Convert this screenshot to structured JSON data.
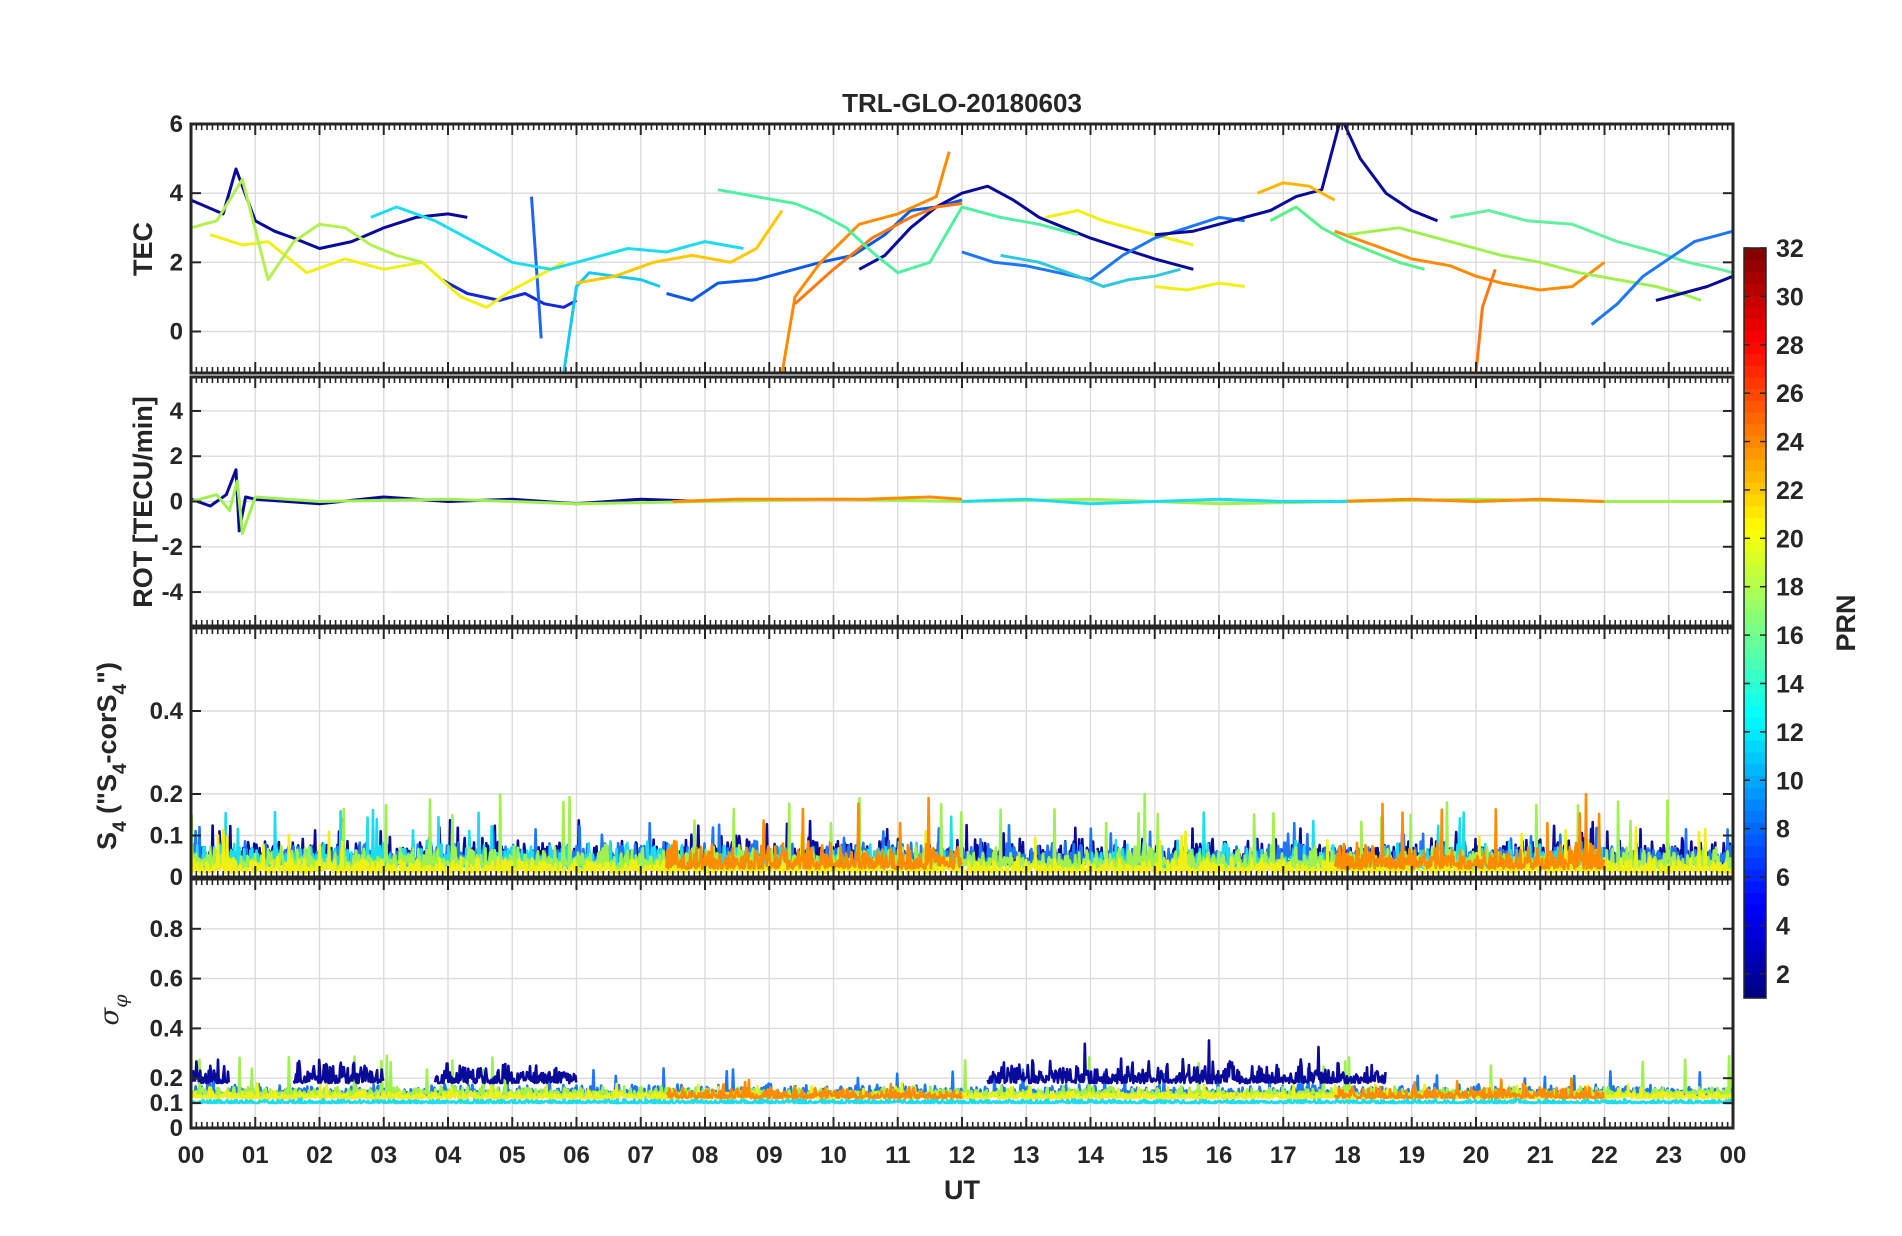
{
  "chart_data": [
    {
      "type": "line",
      "title": "TRL-GLO-20180603",
      "ylabel": "TEC",
      "ylim": [
        -1.2,
        6
      ],
      "yticks": [
        0,
        2,
        4,
        6
      ],
      "xlim": [
        0,
        24
      ],
      "grid": true,
      "series": [
        {
          "color": "#0A0A9A",
          "x": [
            0.0,
            0.5,
            0.7,
            1.0,
            1.3,
            1.6,
            2.0,
            2.5,
            3.0,
            3.5,
            4.0,
            4.3
          ],
          "y": [
            3.8,
            3.4,
            4.7,
            3.2,
            2.9,
            2.7,
            2.4,
            2.6,
            3.0,
            3.3,
            3.4,
            3.3
          ]
        },
        {
          "color": "#1428D6",
          "x": [
            3.9,
            4.3,
            4.8,
            5.2,
            5.5,
            5.8,
            6.0
          ],
          "y": [
            1.5,
            1.1,
            0.9,
            1.1,
            0.8,
            0.7,
            0.9
          ]
        },
        {
          "color": "#1E64F0",
          "x": [
            5.3,
            5.4,
            5.45
          ],
          "y": [
            3.9,
            1.2,
            -0.2
          ]
        },
        {
          "color": "#14C8F0",
          "x": [
            5.8,
            6.0,
            6.2,
            6.6,
            7.0,
            7.3
          ],
          "y": [
            -1.2,
            1.3,
            1.7,
            1.6,
            1.5,
            1.3
          ]
        },
        {
          "color": "#0A5AE6",
          "x": [
            7.4,
            7.8,
            8.2,
            8.8,
            9.2,
            9.8,
            10.3,
            10.8,
            11.2,
            11.6,
            12.0
          ],
          "y": [
            1.1,
            0.9,
            1.4,
            1.5,
            1.7,
            2.0,
            2.2,
            2.8,
            3.5,
            3.6,
            3.8
          ]
        },
        {
          "color": "#0A0A9A",
          "x": [
            10.4,
            10.8,
            11.2,
            11.6,
            12.0,
            12.4,
            12.8,
            13.2,
            13.6,
            14.0,
            14.5,
            15.0,
            15.6
          ],
          "y": [
            1.8,
            2.2,
            3.0,
            3.6,
            4.0,
            4.2,
            3.8,
            3.3,
            3.0,
            2.7,
            2.4,
            2.1,
            1.8
          ]
        },
        {
          "color": "#FF8C00",
          "x": [
            9.2,
            9.4,
            9.8,
            10.4,
            11.0,
            11.6,
            11.8
          ],
          "y": [
            -1.2,
            1.0,
            2.0,
            3.1,
            3.4,
            3.9,
            5.2
          ]
        },
        {
          "color": "#FF7814",
          "x": [
            9.4,
            10.0,
            10.6,
            11.2,
            11.6,
            12.0
          ],
          "y": [
            0.8,
            1.8,
            2.7,
            3.3,
            3.6,
            3.7
          ]
        },
        {
          "color": "#50F0A0",
          "x": [
            8.2,
            8.8,
            9.4,
            9.8,
            10.2,
            10.6,
            11.0,
            11.5,
            12.0,
            12.6,
            13.2,
            13.8
          ],
          "y": [
            4.1,
            3.9,
            3.7,
            3.4,
            3.0,
            2.3,
            1.7,
            2.0,
            3.6,
            3.3,
            3.1,
            2.8
          ]
        },
        {
          "color": "#F0F014",
          "x": [
            13.3,
            13.8,
            14.2,
            14.6,
            15.0,
            15.6
          ],
          "y": [
            3.3,
            3.5,
            3.2,
            3.0,
            2.8,
            2.5
          ]
        },
        {
          "color": "#F0F014",
          "x": [
            15.0,
            15.5,
            16.0,
            16.4
          ],
          "y": [
            1.3,
            1.2,
            1.4,
            1.3
          ]
        },
        {
          "color": "#1E78F5",
          "x": [
            12.0,
            12.5,
            13.0,
            13.5,
            14.0,
            14.5,
            15.0,
            15.5,
            16.0,
            16.4
          ],
          "y": [
            2.3,
            2.0,
            1.9,
            1.7,
            1.5,
            2.2,
            2.7,
            3.0,
            3.3,
            3.2
          ]
        },
        {
          "color": "#0A0A9A",
          "x": [
            15.0,
            15.6,
            16.2,
            16.8,
            17.2,
            17.6,
            17.9,
            18.2,
            18.6,
            19.0,
            19.4
          ],
          "y": [
            2.8,
            2.9,
            3.2,
            3.5,
            3.9,
            4.1,
            6.2,
            5.0,
            4.0,
            3.5,
            3.2
          ]
        },
        {
          "color": "#FFB400",
          "x": [
            16.6,
            17.0,
            17.4,
            17.8
          ],
          "y": [
            4.0,
            4.3,
            4.2,
            3.8
          ]
        },
        {
          "color": "#FF8C00",
          "x": [
            17.8,
            18.4,
            19.0,
            19.6,
            20.0,
            20.4,
            21.0,
            21.5,
            22.0
          ],
          "y": [
            2.9,
            2.5,
            2.1,
            1.9,
            1.6,
            1.4,
            1.2,
            1.3,
            2.0
          ]
        },
        {
          "color": "#FF7814",
          "x": [
            20.0,
            20.1,
            20.3
          ],
          "y": [
            -1.2,
            0.7,
            1.8
          ]
        },
        {
          "color": "#A0F050",
          "x": [
            18.0,
            18.8,
            19.6,
            20.4,
            21.0,
            21.6,
            22.2,
            22.8,
            23.2,
            23.5
          ],
          "y": [
            2.8,
            3.0,
            2.6,
            2.2,
            2.0,
            1.7,
            1.5,
            1.3,
            1.1,
            0.9
          ]
        },
        {
          "color": "#64F0A0",
          "x": [
            19.6,
            20.2,
            20.8,
            21.5,
            22.2,
            22.8,
            23.3,
            23.8,
            24.0
          ],
          "y": [
            3.3,
            3.5,
            3.2,
            3.1,
            2.6,
            2.3,
            2.0,
            1.8,
            1.7
          ]
        },
        {
          "color": "#1E78F5",
          "x": [
            21.8,
            22.2,
            22.6,
            23.0,
            23.4,
            23.8,
            24.0
          ],
          "y": [
            0.2,
            0.8,
            1.6,
            2.1,
            2.6,
            2.8,
            2.9
          ]
        },
        {
          "color": "#0A0A9A",
          "x": [
            22.8,
            23.2,
            23.6,
            24.0
          ],
          "y": [
            0.9,
            1.1,
            1.3,
            1.6
          ]
        },
        {
          "color": "#F0F014",
          "x": [
            0.3,
            0.8,
            1.2,
            1.8,
            2.4,
            3.0,
            3.6,
            4.2,
            4.6,
            5.0,
            5.4,
            5.8
          ],
          "y": [
            2.8,
            2.5,
            2.6,
            1.7,
            2.1,
            1.8,
            2.0,
            1.0,
            0.7,
            1.2,
            1.6,
            2.0
          ]
        },
        {
          "color": "#B4F050",
          "x": [
            0.0,
            0.4,
            0.8,
            1.2,
            1.6,
            2.0,
            2.4,
            2.8,
            3.2,
            3.6
          ],
          "y": [
            3.0,
            3.2,
            4.4,
            1.5,
            2.6,
            3.1,
            3.0,
            2.5,
            2.2,
            2.0
          ]
        },
        {
          "color": "#1EDCF0",
          "x": [
            2.8,
            3.2,
            3.8,
            4.4,
            5.0,
            5.6,
            6.2,
            6.8,
            7.4,
            8.0,
            8.6
          ],
          "y": [
            3.3,
            3.6,
            3.2,
            2.6,
            2.0,
            1.8,
            2.1,
            2.4,
            2.3,
            2.6,
            2.4
          ]
        },
        {
          "color": "#32C8DC",
          "x": [
            12.6,
            13.2,
            13.8,
            14.2,
            14.6,
            15.0,
            15.4
          ],
          "y": [
            2.2,
            2.0,
            1.6,
            1.3,
            1.5,
            1.6,
            1.8
          ]
        },
        {
          "color": "#FFC800",
          "x": [
            6.0,
            6.6,
            7.2,
            7.8,
            8.4,
            8.8,
            9.2
          ],
          "y": [
            1.4,
            1.6,
            2.0,
            2.2,
            2.0,
            2.4,
            3.5
          ]
        },
        {
          "color": "#5AF08C",
          "x": [
            16.8,
            17.2,
            17.6,
            18.0,
            18.4,
            18.8,
            19.2
          ],
          "y": [
            3.2,
            3.6,
            3.0,
            2.6,
            2.3,
            2.0,
            1.8
          ]
        }
      ]
    },
    {
      "type": "line",
      "ylabel": "ROT [TECU/min]",
      "ylim": [
        -5.5,
        5.5
      ],
      "yticks": [
        -4,
        -2,
        0,
        2,
        4
      ],
      "xlim": [
        0,
        24
      ],
      "grid": true,
      "series": [
        {
          "color": "#0A0A9A",
          "x": [
            0.0,
            0.3,
            0.55,
            0.7,
            0.75,
            0.85,
            1.0,
            2.0,
            3.0,
            4.0,
            5.0,
            6.0,
            7.0,
            8.0
          ],
          "y": [
            0.1,
            -0.2,
            0.3,
            1.4,
            -1.3,
            0.2,
            0.1,
            -0.1,
            0.2,
            0.0,
            0.1,
            -0.1,
            0.1,
            0.0
          ]
        },
        {
          "color": "#A0F050",
          "x": [
            0.0,
            0.4,
            0.6,
            0.72,
            0.8,
            1.0,
            2.0,
            4.0,
            6.0,
            8.0,
            10.0,
            12.0,
            14.0,
            16.0,
            18.0,
            20.0,
            22.0,
            24.0
          ],
          "y": [
            0.0,
            0.3,
            -0.4,
            0.9,
            -1.4,
            0.2,
            0.0,
            0.1,
            -0.1,
            0.0,
            0.1,
            0.0,
            0.1,
            -0.1,
            0.0,
            0.1,
            0.0,
            0.0
          ]
        },
        {
          "color": "#FF8C00",
          "x": [
            7.5,
            8.5,
            9.5,
            10.5,
            11.5,
            12.0
          ],
          "y": [
            0.0,
            0.1,
            0.1,
            0.1,
            0.2,
            0.1
          ]
        },
        {
          "color": "#FF8C00",
          "x": [
            17.8,
            19.0,
            20.0,
            21.0,
            22.0
          ],
          "y": [
            0.0,
            0.1,
            0.0,
            0.1,
            0.0
          ]
        },
        {
          "color": "#1EDCF0",
          "x": [
            12.0,
            13.0,
            14.0,
            15.0,
            16.0,
            17.0,
            18.0
          ],
          "y": [
            0.0,
            0.1,
            -0.1,
            0.0,
            0.1,
            0.0,
            0.0
          ]
        }
      ]
    },
    {
      "type": "line",
      "ylabel_parts": [
        "S",
        "4",
        " (\"S",
        "4",
        "-corS",
        "4",
        "\")"
      ],
      "ylim": [
        0,
        0.6
      ],
      "yticks": [
        0,
        0.1,
        0.2,
        0.4
      ],
      "xlim": [
        0,
        24
      ],
      "grid": true,
      "bands": [
        {
          "color": "#0A0A9A",
          "ranges": [
            [
              0,
              24
            ]
          ],
          "base": 0.03,
          "amp": 0.07,
          "peak": 0.14
        },
        {
          "color": "#1E78F5",
          "ranges": [
            [
              0,
              24
            ]
          ],
          "base": 0.03,
          "amp": 0.06,
          "peak": 0.13
        },
        {
          "color": "#1EDCF0",
          "ranges": [
            [
              0,
              12
            ],
            [
              14,
              22
            ]
          ],
          "base": 0.02,
          "amp": 0.07,
          "peak": 0.17
        },
        {
          "color": "#A0F050",
          "ranges": [
            [
              0,
              24
            ]
          ],
          "base": 0.02,
          "amp": 0.06,
          "peak": 0.2
        },
        {
          "color": "#F0F014",
          "ranges": [
            [
              0,
              24
            ]
          ],
          "base": 0.01,
          "amp": 0.04,
          "peak": 0.12
        },
        {
          "color": "#FF8C00",
          "ranges": [
            [
              7.4,
              12.0
            ],
            [
              17.8,
              22.0
            ]
          ],
          "base": 0.02,
          "amp": 0.07,
          "peak": 0.2
        }
      ]
    },
    {
      "type": "line",
      "ylabel_symbol": "σ",
      "ylabel_sub": "φ",
      "ylim": [
        0,
        1
      ],
      "yticks": [
        0,
        0.1,
        0.2,
        0.4,
        0.6,
        0.8
      ],
      "xlim": [
        0,
        24
      ],
      "grid": true,
      "bands": [
        {
          "color": "#1EDCF0",
          "ranges": [
            [
              0,
              24
            ]
          ],
          "base": 0.1,
          "amp": 0.02,
          "peak": 0.13
        },
        {
          "color": "#1E78F5",
          "ranges": [
            [
              0,
              24
            ]
          ],
          "base": 0.13,
          "amp": 0.05,
          "peak": 0.24
        },
        {
          "color": "#A0F050",
          "ranges": [
            [
              0,
              24
            ]
          ],
          "base": 0.13,
          "amp": 0.04,
          "peak": 0.3
        },
        {
          "color": "#F0F014",
          "ranges": [
            [
              0,
              24
            ]
          ],
          "base": 0.12,
          "amp": 0.03,
          "peak": 0.18
        },
        {
          "color": "#0A0A9A",
          "ranges": [
            [
              0,
              0.6
            ],
            [
              1.6,
              3.0
            ],
            [
              3.8,
              6.0
            ],
            [
              12.4,
              18.6
            ]
          ],
          "base": 0.18,
          "amp": 0.1,
          "peak": 0.37
        },
        {
          "color": "#FF8C00",
          "ranges": [
            [
              7.4,
              12.0
            ],
            [
              17.8,
              22.0
            ]
          ],
          "base": 0.12,
          "amp": 0.05,
          "peak": 0.2
        }
      ]
    }
  ],
  "x_axis": {
    "label": "UT",
    "tick_labels": [
      "00",
      "01",
      "02",
      "03",
      "04",
      "05",
      "06",
      "07",
      "08",
      "09",
      "10",
      "11",
      "12",
      "13",
      "14",
      "15",
      "16",
      "17",
      "18",
      "19",
      "20",
      "21",
      "22",
      "23",
      "00"
    ]
  },
  "colorbar": {
    "label": "PRN",
    "range": [
      1,
      32
    ],
    "colormap": "jet",
    "tick_labels": [
      "2",
      "4",
      "6",
      "8",
      "10",
      "12",
      "14",
      "16",
      "18",
      "20",
      "22",
      "24",
      "26",
      "28",
      "30",
      "32"
    ]
  }
}
